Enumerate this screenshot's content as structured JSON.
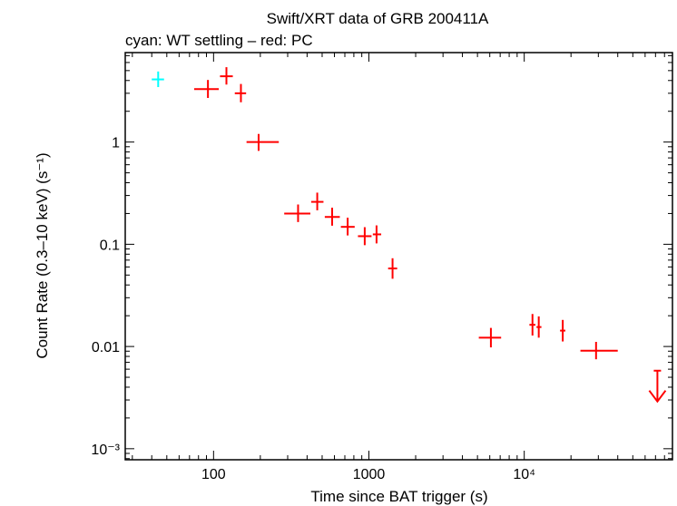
{
  "chart_data": {
    "type": "scatter",
    "title": "Swift/XRT data of GRB 200411A",
    "subtitle": "cyan: WT settling – red: PC",
    "xlabel": "Time since BAT trigger (s)",
    "ylabel": "Count Rate (0.3–10 keV) (s⁻¹)",
    "xscale": "log",
    "yscale": "log",
    "xlim": [
      27,
      90000
    ],
    "ylim": [
      0.00078,
      7.5
    ],
    "x_ticks": [
      {
        "value": 100,
        "label": "100"
      },
      {
        "value": 1000,
        "label": "1000"
      },
      {
        "value": 10000,
        "label": "10⁴"
      }
    ],
    "y_ticks": [
      {
        "value": 1,
        "label": "1"
      },
      {
        "value": 0.1,
        "label": "0.1"
      },
      {
        "value": 0.01,
        "label": "0.01"
      },
      {
        "value": 0.001,
        "label": "10⁻³"
      }
    ],
    "colors": {
      "wt": "#00ffff",
      "pc": "#ff0000",
      "axis": "#000000"
    },
    "series": [
      {
        "mode": "WT settling",
        "color": "#00ffff",
        "points": [
          {
            "x": 44,
            "xerr": [
              40,
              48
            ],
            "y": 4.1,
            "yerr": [
              3.45,
              4.9
            ]
          }
        ]
      },
      {
        "mode": "PC",
        "color": "#ff0000",
        "points": [
          {
            "x": 92,
            "xerr": [
              75,
              108
            ],
            "y": 3.3,
            "yerr": [
              2.7,
              4.05
            ]
          },
          {
            "x": 121,
            "xerr": [
              110,
              133
            ],
            "y": 4.4,
            "yerr": [
              3.65,
              5.4
            ]
          },
          {
            "x": 150,
            "xerr": [
              137,
              162
            ],
            "y": 3.0,
            "yerr": [
              2.45,
              3.7
            ]
          },
          {
            "x": 195,
            "xerr": [
              163,
              263
            ],
            "y": 1.0,
            "yerr": [
              0.82,
              1.2
            ]
          },
          {
            "x": 350,
            "xerr": [
              285,
              420
            ],
            "y": 0.2,
            "yerr": [
              0.165,
              0.245
            ]
          },
          {
            "x": 465,
            "xerr": [
              425,
              510
            ],
            "y": 0.26,
            "yerr": [
              0.215,
              0.32
            ]
          },
          {
            "x": 580,
            "xerr": [
              520,
              650
            ],
            "y": 0.185,
            "yerr": [
              0.152,
              0.228
            ]
          },
          {
            "x": 730,
            "xerr": [
              660,
              810
            ],
            "y": 0.148,
            "yerr": [
              0.122,
              0.182
            ]
          },
          {
            "x": 940,
            "xerr": [
              850,
              1040
            ],
            "y": 0.12,
            "yerr": [
              0.098,
              0.147
            ]
          },
          {
            "x": 1120,
            "xerr": [
              1060,
              1200
            ],
            "y": 0.125,
            "yerr": [
              0.102,
              0.153
            ]
          },
          {
            "x": 1420,
            "xerr": [
              1330,
              1520
            ],
            "y": 0.058,
            "yerr": [
              0.046,
              0.073
            ]
          },
          {
            "x": 6100,
            "xerr": [
              5100,
              7100
            ],
            "y": 0.0122,
            "yerr": [
              0.0098,
              0.0152
            ]
          },
          {
            "x": 11300,
            "xerr": [
              10800,
              11800
            ],
            "y": 0.0163,
            "yerr": [
              0.0128,
              0.0208
            ]
          },
          {
            "x": 12400,
            "xerr": [
              12000,
              12900
            ],
            "y": 0.0155,
            "yerr": [
              0.0122,
              0.0197
            ]
          },
          {
            "x": 17700,
            "xerr": [
              17000,
              18400
            ],
            "y": 0.0143,
            "yerr": [
              0.0112,
              0.0182
            ]
          },
          {
            "x": 29000,
            "xerr": [
              23000,
              40000
            ],
            "y": 0.0091,
            "yerr": [
              0.0075,
              0.0111
            ]
          }
        ]
      },
      {
        "mode": "PC upper limit",
        "color": "#ff0000",
        "points": [
          {
            "x": 72000,
            "upper_limit": 0.0058,
            "arrow_to": 0.0029
          }
        ]
      }
    ]
  }
}
